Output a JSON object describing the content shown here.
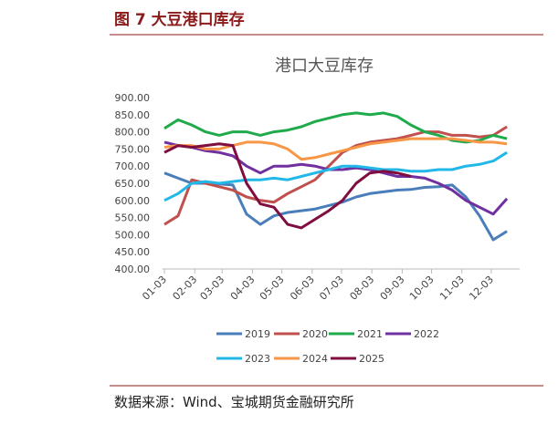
{
  "header": {
    "title": "图 7 大豆港口库存"
  },
  "chart_data": {
    "type": "line",
    "title": "港口大豆库存",
    "x": [
      0,
      14,
      28,
      42,
      56,
      70,
      84,
      98,
      112,
      126,
      140,
      154,
      168,
      182,
      196,
      210,
      224,
      238,
      252,
      266,
      280,
      294,
      308,
      322,
      336,
      350
    ],
    "xlim": [
      0,
      363
    ],
    "xticks": [
      {
        "value": 0,
        "label": "01-03"
      },
      {
        "value": 31,
        "label": "02-03"
      },
      {
        "value": 59,
        "label": "03-03"
      },
      {
        "value": 90,
        "label": "04-03"
      },
      {
        "value": 120,
        "label": "05-03"
      },
      {
        "value": 151,
        "label": "06-03"
      },
      {
        "value": 181,
        "label": "07-03"
      },
      {
        "value": 212,
        "label": "08-03"
      },
      {
        "value": 243,
        "label": "09-03"
      },
      {
        "value": 273,
        "label": "10-03"
      },
      {
        "value": 304,
        "label": "11-03"
      },
      {
        "value": 334,
        "label": "12-03"
      }
    ],
    "ylim": [
      400,
      900
    ],
    "yticks": [
      {
        "value": 400,
        "label": "400.00"
      },
      {
        "value": 450,
        "label": "450.00"
      },
      {
        "value": 500,
        "label": "500.00"
      },
      {
        "value": 550,
        "label": "550.00"
      },
      {
        "value": 600,
        "label": "600.00"
      },
      {
        "value": 650,
        "label": "650.00"
      },
      {
        "value": 700,
        "label": "700.00"
      },
      {
        "value": 750,
        "label": "750.00"
      },
      {
        "value": 800,
        "label": "800.00"
      },
      {
        "value": 850,
        "label": "850.00"
      },
      {
        "value": 900,
        "label": "900.00"
      }
    ],
    "grid": false,
    "series": [
      {
        "name": "2019",
        "color": "#4a7ebb",
        "values": [
          680,
          665,
          650,
          650,
          648,
          645,
          560,
          530,
          555,
          565,
          570,
          575,
          585,
          595,
          610,
          620,
          625,
          630,
          632,
          638,
          640,
          645,
          610,
          555,
          485,
          510
        ]
      },
      {
        "name": "2020",
        "color": "#c0504d",
        "values": [
          530,
          555,
          660,
          650,
          640,
          630,
          610,
          600,
          595,
          620,
          640,
          660,
          700,
          740,
          760,
          770,
          775,
          780,
          790,
          800,
          800,
          790,
          790,
          785,
          790,
          815
        ]
      },
      {
        "name": "2021",
        "color": "#1faa4c",
        "values": [
          810,
          835,
          820,
          800,
          790,
          800,
          800,
          790,
          800,
          805,
          815,
          830,
          840,
          850,
          855,
          850,
          855,
          845,
          820,
          800,
          790,
          775,
          770,
          775,
          790,
          780
        ]
      },
      {
        "name": "2022",
        "color": "#7030a0",
        "values": [
          770,
          760,
          755,
          745,
          740,
          730,
          700,
          680,
          700,
          700,
          705,
          700,
          690,
          690,
          695,
          690,
          680,
          670,
          670,
          665,
          650,
          630,
          600,
          580,
          560,
          605
        ]
      },
      {
        "name": "2023",
        "color": "#21b8e8",
        "values": [
          600,
          620,
          650,
          655,
          650,
          655,
          660,
          660,
          665,
          660,
          670,
          680,
          690,
          700,
          700,
          695,
          690,
          690,
          685,
          685,
          690,
          690,
          700,
          705,
          715,
          740
        ]
      },
      {
        "name": "2024",
        "color": "#f79646",
        "values": [
          755,
          760,
          760,
          750,
          750,
          760,
          770,
          770,
          765,
          750,
          720,
          725,
          735,
          745,
          755,
          765,
          770,
          775,
          780,
          780,
          780,
          780,
          775,
          770,
          770,
          765
        ]
      },
      {
        "name": "2025",
        "color": "#7f0d3f",
        "values": [
          740,
          760,
          755,
          760,
          765,
          760,
          650,
          590,
          580,
          530,
          520,
          545,
          570,
          600,
          650,
          680,
          685,
          680,
          670,
          null,
          null,
          null,
          null,
          null,
          null,
          null
        ]
      }
    ]
  },
  "footer": {
    "source": "数据来源：Wind、宝城期货金融研究所"
  }
}
